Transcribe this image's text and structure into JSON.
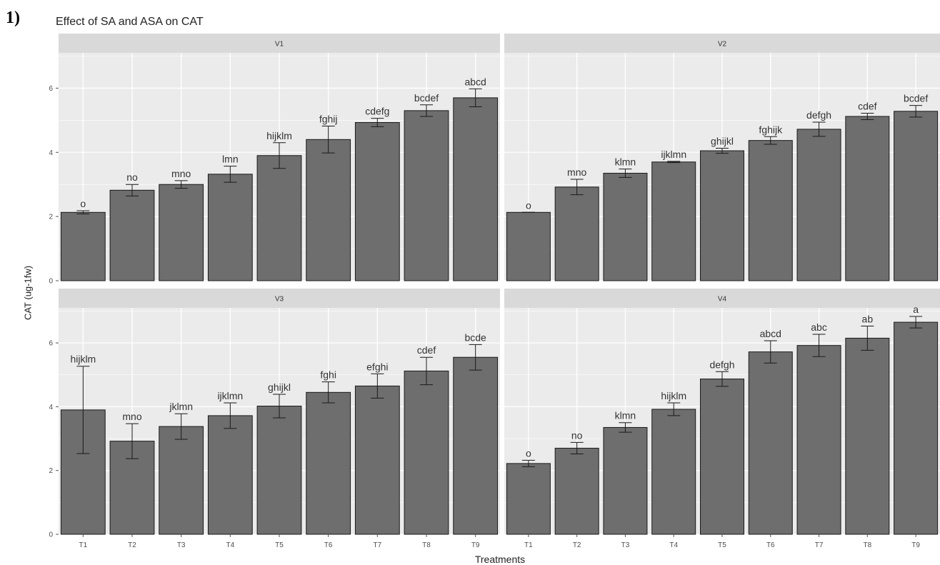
{
  "figure_label": "1)",
  "chart_data": {
    "type": "bar",
    "title": "Effect of SA and ASA on CAT",
    "xlabel": "Treatments",
    "ylabel": "CAT (ug-1fw)",
    "categories": [
      "T1",
      "T2",
      "T3",
      "T4",
      "T5",
      "T6",
      "T7",
      "T8",
      "T9"
    ],
    "ylim": [
      0,
      7.1
    ],
    "yticks": [
      0,
      2,
      4,
      6
    ],
    "grid": true,
    "facets": [
      {
        "name": "V1",
        "values": [
          2.13,
          2.82,
          3.0,
          3.32,
          3.9,
          4.4,
          4.93,
          5.3,
          5.7
        ],
        "errors": [
          0.05,
          0.18,
          0.12,
          0.25,
          0.4,
          0.42,
          0.13,
          0.18,
          0.28
        ],
        "letters": [
          "o",
          "no",
          "mno",
          "lmn",
          "hijklm",
          "fghij",
          "cdefg",
          "bcdef",
          "abcd"
        ]
      },
      {
        "name": "V2",
        "values": [
          2.13,
          2.92,
          3.35,
          3.7,
          4.05,
          4.37,
          4.72,
          5.12,
          5.28
        ],
        "errors": [
          0.0,
          0.24,
          0.13,
          0.02,
          0.08,
          0.12,
          0.22,
          0.1,
          0.18
        ],
        "letters": [
          "o",
          "mno",
          "klmn",
          "ijklmn",
          "ghijkl",
          "fghijk",
          "defgh",
          "cdef",
          "bcdef"
        ]
      },
      {
        "name": "V3",
        "values": [
          3.9,
          2.92,
          3.38,
          3.72,
          4.02,
          4.45,
          4.65,
          5.12,
          5.55
        ],
        "errors": [
          1.37,
          0.55,
          0.4,
          0.4,
          0.37,
          0.33,
          0.38,
          0.43,
          0.4
        ],
        "letters": [
          "hijklm",
          "mno",
          "jklmn",
          "ijklmn",
          "ghijkl",
          "fghi",
          "efghi",
          "cdef",
          "bcde"
        ]
      },
      {
        "name": "V4",
        "values": [
          2.22,
          2.7,
          3.35,
          3.92,
          4.87,
          5.72,
          5.92,
          6.15,
          6.65
        ],
        "errors": [
          0.1,
          0.18,
          0.15,
          0.2,
          0.23,
          0.35,
          0.35,
          0.38,
          0.18
        ],
        "letters": [
          "o",
          "no",
          "klmn",
          "hijklm",
          "defgh",
          "abcd",
          "abc",
          "ab",
          "a"
        ]
      }
    ]
  },
  "colors": {
    "panel_background": "#ebebeb",
    "strip_background": "#d9d9d9",
    "gridline": "#ffffff",
    "bar_fill": "#6e6e6e",
    "bar_outline": "#1a1a1a",
    "text": "#333333"
  }
}
